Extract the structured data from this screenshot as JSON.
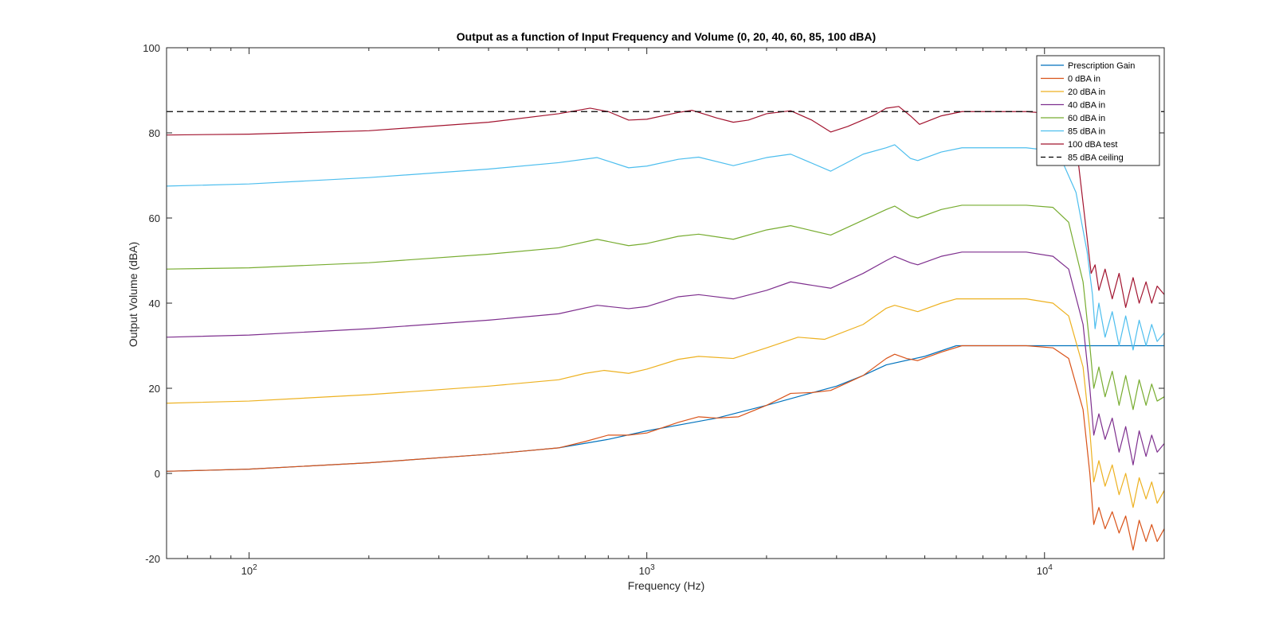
{
  "chart_data": {
    "type": "line",
    "title": "Output as a function of Input Frequency and Volume (0, 20, 40, 60, 85, 100 dBA)",
    "xlabel": "Frequency (Hz)",
    "ylabel": "Output Volume (dBA)",
    "xscale": "log",
    "xlim": [
      62,
      20000
    ],
    "ylim": [
      -20,
      100
    ],
    "x_ticks": [
      {
        "value": 100,
        "base": "10",
        "exp": "2"
      },
      {
        "value": 1000,
        "base": "10",
        "exp": "3"
      },
      {
        "value": 10000,
        "base": "10",
        "exp": "4"
      }
    ],
    "y_ticks": [
      "-20",
      "0",
      "20",
      "40",
      "60",
      "80",
      "100"
    ],
    "grid": false,
    "legend_position": "top-right",
    "series": [
      {
        "name": "Prescription Gain",
        "color": "#0072bd",
        "points": [
          [
            62,
            0.5
          ],
          [
            100,
            1
          ],
          [
            200,
            2.5
          ],
          [
            400,
            4.5
          ],
          [
            600,
            6
          ],
          [
            800,
            8
          ],
          [
            1000,
            10
          ],
          [
            1500,
            13
          ],
          [
            2000,
            16
          ],
          [
            2500,
            18.5
          ],
          [
            3000,
            20.5
          ],
          [
            3500,
            23
          ],
          [
            4000,
            25.5
          ],
          [
            5000,
            27.5
          ],
          [
            6000,
            30
          ],
          [
            10000,
            30
          ],
          [
            20000,
            30
          ]
        ]
      },
      {
        "name": "0 dBA in",
        "color": "#d95319",
        "points": [
          [
            62,
            0.5
          ],
          [
            100,
            1
          ],
          [
            200,
            2.5
          ],
          [
            400,
            4.5
          ],
          [
            600,
            6
          ],
          [
            700,
            7.5
          ],
          [
            800,
            9
          ],
          [
            900,
            9
          ],
          [
            1000,
            9.5
          ],
          [
            1200,
            12
          ],
          [
            1350,
            13.3
          ],
          [
            1500,
            13
          ],
          [
            1700,
            13.3
          ],
          [
            2000,
            16
          ],
          [
            2300,
            18.8
          ],
          [
            2600,
            19
          ],
          [
            2900,
            19.5
          ],
          [
            3500,
            23
          ],
          [
            4000,
            27
          ],
          [
            4200,
            28
          ],
          [
            4500,
            27
          ],
          [
            4800,
            26.5
          ],
          [
            5500,
            28.5
          ],
          [
            6200,
            30
          ],
          [
            9000,
            30
          ],
          [
            10500,
            29.5
          ],
          [
            11500,
            27
          ],
          [
            12500,
            15
          ],
          [
            13000,
            0
          ],
          [
            13300,
            -12
          ],
          [
            13700,
            -8
          ],
          [
            14200,
            -13
          ],
          [
            14800,
            -9
          ],
          [
            15400,
            -14
          ],
          [
            16000,
            -10
          ],
          [
            16700,
            -18
          ],
          [
            17300,
            -11
          ],
          [
            18000,
            -16
          ],
          [
            18600,
            -12
          ],
          [
            19200,
            -16
          ],
          [
            20000,
            -13
          ]
        ]
      },
      {
        "name": "20 dBA in",
        "color": "#edb120",
        "points": [
          [
            62,
            16.5
          ],
          [
            100,
            17
          ],
          [
            200,
            18.5
          ],
          [
            400,
            20.5
          ],
          [
            600,
            22
          ],
          [
            700,
            23.5
          ],
          [
            780,
            24.2
          ],
          [
            900,
            23.5
          ],
          [
            1000,
            24.5
          ],
          [
            1200,
            26.8
          ],
          [
            1350,
            27.5
          ],
          [
            1650,
            27
          ],
          [
            2000,
            29.5
          ],
          [
            2400,
            32
          ],
          [
            2800,
            31.5
          ],
          [
            3500,
            35
          ],
          [
            4000,
            38.8
          ],
          [
            4200,
            39.5
          ],
          [
            4600,
            38.5
          ],
          [
            4800,
            38
          ],
          [
            5500,
            40
          ],
          [
            6000,
            41
          ],
          [
            9000,
            41
          ],
          [
            10500,
            40
          ],
          [
            11500,
            37
          ],
          [
            12500,
            25
          ],
          [
            13000,
            10
          ],
          [
            13300,
            -2
          ],
          [
            13700,
            3
          ],
          [
            14200,
            -3
          ],
          [
            14800,
            2
          ],
          [
            15400,
            -5
          ],
          [
            16000,
            0
          ],
          [
            16700,
            -8
          ],
          [
            17300,
            -1
          ],
          [
            18000,
            -6
          ],
          [
            18600,
            -2
          ],
          [
            19200,
            -7
          ],
          [
            20000,
            -4
          ]
        ]
      },
      {
        "name": "40 dBA in",
        "color": "#7e2f8e",
        "points": [
          [
            62,
            32
          ],
          [
            100,
            32.5
          ],
          [
            200,
            34
          ],
          [
            400,
            36
          ],
          [
            600,
            37.5
          ],
          [
            750,
            39.5
          ],
          [
            900,
            38.7
          ],
          [
            1000,
            39.2
          ],
          [
            1200,
            41.5
          ],
          [
            1350,
            42
          ],
          [
            1650,
            41
          ],
          [
            2000,
            43
          ],
          [
            2300,
            45
          ],
          [
            2900,
            43.5
          ],
          [
            3500,
            47
          ],
          [
            4000,
            50
          ],
          [
            4200,
            51
          ],
          [
            4600,
            49.5
          ],
          [
            4800,
            49
          ],
          [
            5500,
            51
          ],
          [
            6200,
            52
          ],
          [
            9000,
            52
          ],
          [
            10500,
            51
          ],
          [
            11500,
            48
          ],
          [
            12500,
            35
          ],
          [
            13000,
            20
          ],
          [
            13300,
            9
          ],
          [
            13700,
            14
          ],
          [
            14200,
            8
          ],
          [
            14800,
            13
          ],
          [
            15400,
            5
          ],
          [
            16000,
            11
          ],
          [
            16700,
            2
          ],
          [
            17300,
            10
          ],
          [
            18000,
            4
          ],
          [
            18600,
            9
          ],
          [
            19200,
            5
          ],
          [
            20000,
            7
          ]
        ]
      },
      {
        "name": "60 dBA in",
        "color": "#77ac30",
        "points": [
          [
            62,
            48
          ],
          [
            100,
            48.3
          ],
          [
            200,
            49.5
          ],
          [
            400,
            51.5
          ],
          [
            600,
            53
          ],
          [
            750,
            55
          ],
          [
            900,
            53.5
          ],
          [
            1000,
            54
          ],
          [
            1200,
            55.7
          ],
          [
            1350,
            56.2
          ],
          [
            1650,
            55
          ],
          [
            2000,
            57.2
          ],
          [
            2300,
            58.2
          ],
          [
            2900,
            56
          ],
          [
            3500,
            59.5
          ],
          [
            4000,
            62
          ],
          [
            4200,
            62.8
          ],
          [
            4600,
            60.5
          ],
          [
            4800,
            60
          ],
          [
            5500,
            62
          ],
          [
            6200,
            63
          ],
          [
            9000,
            63
          ],
          [
            10500,
            62.5
          ],
          [
            11500,
            59
          ],
          [
            12500,
            45
          ],
          [
            13000,
            30
          ],
          [
            13300,
            20
          ],
          [
            13700,
            25
          ],
          [
            14200,
            18
          ],
          [
            14800,
            24
          ],
          [
            15400,
            16
          ],
          [
            16000,
            23
          ],
          [
            16700,
            15
          ],
          [
            17300,
            22
          ],
          [
            18000,
            16
          ],
          [
            18600,
            21
          ],
          [
            19200,
            17
          ],
          [
            20000,
            18
          ]
        ]
      },
      {
        "name": "85 dBA in",
        "color": "#4dbeee",
        "points": [
          [
            62,
            67.5
          ],
          [
            100,
            68
          ],
          [
            200,
            69.5
          ],
          [
            400,
            71.5
          ],
          [
            600,
            73
          ],
          [
            750,
            74.2
          ],
          [
            900,
            71.8
          ],
          [
            1000,
            72.2
          ],
          [
            1200,
            73.8
          ],
          [
            1350,
            74.3
          ],
          [
            1650,
            72.3
          ],
          [
            2000,
            74.2
          ],
          [
            2300,
            75
          ],
          [
            2900,
            71
          ],
          [
            3500,
            75
          ],
          [
            4000,
            76.5
          ],
          [
            4200,
            77.2
          ],
          [
            4600,
            74
          ],
          [
            4800,
            73.5
          ],
          [
            5500,
            75.5
          ],
          [
            6200,
            76.5
          ],
          [
            9000,
            76.5
          ],
          [
            10000,
            76
          ],
          [
            11000,
            74
          ],
          [
            12000,
            66
          ],
          [
            12800,
            52
          ],
          [
            13200,
            42
          ],
          [
            13400,
            34
          ],
          [
            13700,
            40
          ],
          [
            14200,
            32
          ],
          [
            14800,
            38
          ],
          [
            15400,
            30
          ],
          [
            16000,
            37
          ],
          [
            16700,
            29
          ],
          [
            17300,
            36
          ],
          [
            18000,
            30
          ],
          [
            18600,
            35
          ],
          [
            19200,
            31
          ],
          [
            20000,
            33
          ]
        ]
      },
      {
        "name": "100 dBA test",
        "color": "#a2142f",
        "points": [
          [
            62,
            79.5
          ],
          [
            100,
            79.7
          ],
          [
            200,
            80.5
          ],
          [
            400,
            82.5
          ],
          [
            600,
            84.5
          ],
          [
            720,
            85.8
          ],
          [
            800,
            85
          ],
          [
            900,
            83
          ],
          [
            1000,
            83.2
          ],
          [
            1200,
            84.8
          ],
          [
            1300,
            85.3
          ],
          [
            1500,
            83.5
          ],
          [
            1650,
            82.5
          ],
          [
            1800,
            83
          ],
          [
            2000,
            84.5
          ],
          [
            2300,
            85.2
          ],
          [
            2600,
            83
          ],
          [
            2900,
            80.2
          ],
          [
            3200,
            81.5
          ],
          [
            3700,
            84
          ],
          [
            4000,
            85.8
          ],
          [
            4300,
            86.2
          ],
          [
            4600,
            84
          ],
          [
            4850,
            82
          ],
          [
            5500,
            84
          ],
          [
            6200,
            85
          ],
          [
            9000,
            85
          ],
          [
            10500,
            84.5
          ],
          [
            11500,
            83
          ],
          [
            12200,
            72
          ],
          [
            12700,
            58
          ],
          [
            13100,
            47
          ],
          [
            13400,
            49
          ],
          [
            13700,
            43
          ],
          [
            14200,
            48
          ],
          [
            14800,
            41
          ],
          [
            15400,
            47
          ],
          [
            16000,
            39
          ],
          [
            16700,
            46
          ],
          [
            17300,
            40
          ],
          [
            18000,
            45
          ],
          [
            18600,
            40
          ],
          [
            19200,
            44
          ],
          [
            20000,
            42
          ]
        ]
      },
      {
        "name": "85 dBA ceiling",
        "color": "#000000",
        "dashed": true,
        "points": [
          [
            62,
            85
          ],
          [
            20000,
            85
          ]
        ]
      }
    ]
  }
}
